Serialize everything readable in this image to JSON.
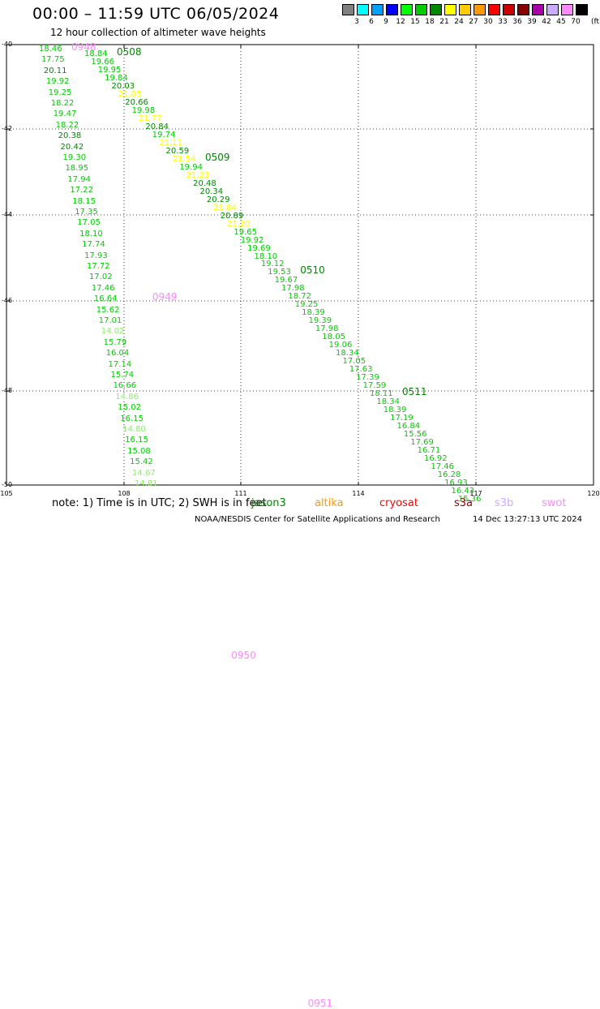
{
  "title": "00:00 – 11:59 UTC 06/05/2024",
  "subtitle": "12 hour collection of altimeter wave heights",
  "legend": {
    "units": "(ft)",
    "bins": [
      {
        "label": "3",
        "color": "#808080"
      },
      {
        "label": "6",
        "color": "#00ffff"
      },
      {
        "label": "9",
        "color": "#00a0ff"
      },
      {
        "label": "12",
        "color": "#0000ff"
      },
      {
        "label": "15",
        "color": "#00ff00"
      },
      {
        "label": "18",
        "color": "#00cc00"
      },
      {
        "label": "21",
        "color": "#008800"
      },
      {
        "label": "24",
        "color": "#ffff00"
      },
      {
        "label": "27",
        "color": "#ffcc00"
      },
      {
        "label": "30",
        "color": "#ff9900"
      },
      {
        "label": "33",
        "color": "#ff0000"
      },
      {
        "label": "36",
        "color": "#cc0000"
      },
      {
        "label": "39",
        "color": "#880000"
      },
      {
        "label": "42",
        "color": "#aa00aa"
      },
      {
        "label": "45",
        "color": "#ccaaff"
      },
      {
        "label": "70",
        "color": "#ff88ff"
      },
      {
        "label": "",
        "color": "#000000"
      }
    ]
  },
  "axes": {
    "lon_ticks": [
      "105",
      "108",
      "111",
      "114",
      "117",
      "120"
    ],
    "lat_ticks": [
      "-40",
      "-42",
      "-44",
      "-46",
      "-48",
      "-50"
    ]
  },
  "tracks": [
    {
      "times": [
        {
          "label": "0948",
          "color": "#ff88ff",
          "row": 0
        },
        {
          "label": "0949",
          "color": "#ff88ff",
          "row": 23
        },
        {
          "label": "0950",
          "color": "#ff88ff",
          "row": 56
        },
        {
          "label": "0951",
          "color": "#ff88ff",
          "row": 88
        }
      ],
      "values": [
        {
          "v": "18.46",
          "c": "#00cc00"
        },
        {
          "v": "17.75",
          "c": "#00cc00"
        },
        {
          "v": "20.11",
          "c": "#008800"
        },
        {
          "v": "19.92",
          "c": "#00cc00"
        },
        {
          "v": "19.25",
          "c": "#00cc00"
        },
        {
          "v": "18.22",
          "c": "#00cc00"
        },
        {
          "v": "19.47",
          "c": "#00cc00"
        },
        {
          "v": "18.22",
          "c": "#00cc00"
        },
        {
          "v": "20.38",
          "c": "#008800"
        },
        {
          "v": "20.42",
          "c": "#008800"
        },
        {
          "v": "19.30",
          "c": "#00cc00"
        },
        {
          "v": "18.95",
          "c": "#00cc00"
        },
        {
          "v": "17.94",
          "c": "#00cc00"
        },
        {
          "v": "17.22",
          "c": "#00cc00"
        },
        {
          "v": "18.15",
          "c": "#00cc00"
        },
        {
          "v": "17.35",
          "c": "#00cc00"
        },
        {
          "v": "17.05",
          "c": "#00cc00"
        },
        {
          "v": "18.10",
          "c": "#00cc00"
        },
        {
          "v": "17.74",
          "c": "#00cc00"
        },
        {
          "v": "17.93",
          "c": "#00cc00"
        },
        {
          "v": "17.72",
          "c": "#00cc00"
        },
        {
          "v": "17.02",
          "c": "#00cc00"
        },
        {
          "v": "17.46",
          "c": "#00cc00"
        },
        {
          "v": "16.64",
          "c": "#00cc00"
        },
        {
          "v": "15.62",
          "c": "#00cc00"
        },
        {
          "v": "17.01",
          "c": "#00cc00"
        },
        {
          "v": "14.02",
          "c": "#88ee66"
        },
        {
          "v": "15.79",
          "c": "#00cc00"
        },
        {
          "v": "16.04",
          "c": "#00cc00"
        },
        {
          "v": "17.14",
          "c": "#00cc00"
        },
        {
          "v": "15.74",
          "c": "#00cc00"
        },
        {
          "v": "16.66",
          "c": "#00cc00"
        },
        {
          "v": "14.86",
          "c": "#88ee66"
        },
        {
          "v": "15.02",
          "c": "#00cc00"
        },
        {
          "v": "16.15",
          "c": "#00cc00"
        },
        {
          "v": "14.80",
          "c": "#88ee66"
        },
        {
          "v": "16.15",
          "c": "#00cc00"
        },
        {
          "v": "15.08",
          "c": "#00cc00"
        },
        {
          "v": "15.42",
          "c": "#00cc00"
        },
        {
          "v": "14.67",
          "c": "#88ee66"
        },
        {
          "v": "14.81",
          "c": "#88ee66"
        }
      ]
    },
    {
      "times": [
        {
          "label": "0508",
          "color": "#008800",
          "row": 0
        },
        {
          "label": "0509",
          "color": "#008800",
          "row": 13
        },
        {
          "label": "0510",
          "color": "#008800",
          "row": 27
        },
        {
          "label": "0511",
          "color": "#008800",
          "row": 42
        }
      ],
      "values": [
        {
          "v": "18.84",
          "c": "#00cc00"
        },
        {
          "v": "19.66",
          "c": "#00cc00"
        },
        {
          "v": "19.95",
          "c": "#00cc00"
        },
        {
          "v": "19.84",
          "c": "#00cc00"
        },
        {
          "v": "20.03",
          "c": "#008800"
        },
        {
          "v": "21.05",
          "c": "#ffff00"
        },
        {
          "v": "20.66",
          "c": "#008800"
        },
        {
          "v": "19.98",
          "c": "#00cc00"
        },
        {
          "v": "21.77",
          "c": "#ffff00"
        },
        {
          "v": "20.84",
          "c": "#008800"
        },
        {
          "v": "19.74",
          "c": "#00cc00"
        },
        {
          "v": "21.11",
          "c": "#ffff00"
        },
        {
          "v": "20.59",
          "c": "#008800"
        },
        {
          "v": "21.54",
          "c": "#ffff00"
        },
        {
          "v": "19.94",
          "c": "#00cc00"
        },
        {
          "v": "21.23",
          "c": "#ffff00"
        },
        {
          "v": "20.48",
          "c": "#008800"
        },
        {
          "v": "20.34",
          "c": "#008800"
        },
        {
          "v": "20.29",
          "c": "#008800"
        },
        {
          "v": "21.84",
          "c": "#ffff00"
        },
        {
          "v": "20.89",
          "c": "#008800"
        },
        {
          "v": "21.20",
          "c": "#ffff00"
        },
        {
          "v": "19.65",
          "c": "#00cc00"
        },
        {
          "v": "19.92",
          "c": "#00cc00"
        },
        {
          "v": "19.69",
          "c": "#00cc00"
        },
        {
          "v": "18.10",
          "c": "#00cc00"
        },
        {
          "v": "19.12",
          "c": "#00cc00"
        },
        {
          "v": "19.53",
          "c": "#00cc00"
        },
        {
          "v": "19.67",
          "c": "#00cc00"
        },
        {
          "v": "17.98",
          "c": "#00cc00"
        },
        {
          "v": "18.72",
          "c": "#00cc00"
        },
        {
          "v": "19.25",
          "c": "#00cc00"
        },
        {
          "v": "18.39",
          "c": "#00cc00"
        },
        {
          "v": "19.39",
          "c": "#00cc00"
        },
        {
          "v": "17.98",
          "c": "#00cc00"
        },
        {
          "v": "18.05",
          "c": "#00cc00"
        },
        {
          "v": "19.06",
          "c": "#00cc00"
        },
        {
          "v": "18.34",
          "c": "#00cc00"
        },
        {
          "v": "17.05",
          "c": "#00cc00"
        },
        {
          "v": "17.63",
          "c": "#00cc00"
        },
        {
          "v": "17.39",
          "c": "#00cc00"
        },
        {
          "v": "17.59",
          "c": "#00cc00"
        },
        {
          "v": "18.11",
          "c": "#00cc00"
        },
        {
          "v": "18.34",
          "c": "#00cc00"
        },
        {
          "v": "18.39",
          "c": "#00cc00"
        },
        {
          "v": "17.19",
          "c": "#00cc00"
        },
        {
          "v": "16.84",
          "c": "#00cc00"
        },
        {
          "v": "15.56",
          "c": "#00cc00"
        },
        {
          "v": "17.69",
          "c": "#00cc00"
        },
        {
          "v": "16.71",
          "c": "#00cc00"
        },
        {
          "v": "16.92",
          "c": "#00cc00"
        },
        {
          "v": "17.46",
          "c": "#00cc00"
        },
        {
          "v": "16.28",
          "c": "#00cc00"
        },
        {
          "v": "16.93",
          "c": "#00cc00"
        },
        {
          "v": "16.43",
          "c": "#00cc00"
        },
        {
          "v": "15.36",
          "c": "#00cc00"
        }
      ]
    }
  ],
  "note": "note: 1) Time is in UTC; 2) SWH is in feet",
  "satellites": [
    {
      "name": "jason3",
      "color": "#008800"
    },
    {
      "name": "altika",
      "color": "#ff9900"
    },
    {
      "name": "cryosat",
      "color": "#ff0000"
    },
    {
      "name": "s3a",
      "color": "#880000"
    },
    {
      "name": "s3b",
      "color": "#ccaaff"
    },
    {
      "name": "swot",
      "color": "#ff88ff"
    }
  ],
  "credit": "NOAA/NESDIS Center for Satellite Applications and Research",
  "timestamp": "14 Dec 13:27:13 UTC 2024"
}
